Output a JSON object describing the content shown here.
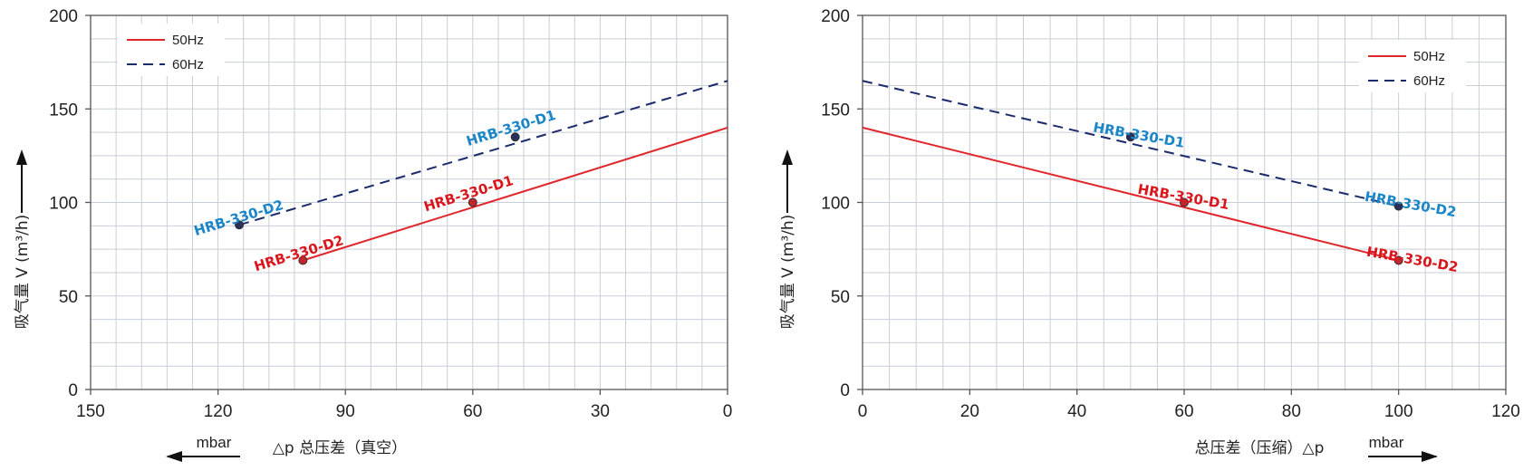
{
  "colors": {
    "s50": "#e0262b",
    "s60": "#1b2a6b",
    "label_blue": "#1a86c8",
    "label_red": "#d9161c",
    "grid": "#c9ced8"
  },
  "chart_data": [
    {
      "type": "line",
      "ylabel": "吸气量 V (m³/h)",
      "xlabel": "△p 总压差（真空）",
      "x_unit": "mbar",
      "x_direction": "left",
      "xlim": [
        150,
        0
      ],
      "ylim": [
        0,
        200
      ],
      "x_ticks": [
        "150",
        "120",
        "90",
        "60",
        "30",
        "0"
      ],
      "y_ticks": [
        "0",
        "50",
        "100",
        "150",
        "200"
      ],
      "grid": true,
      "legend": {
        "position": "top-left",
        "entries": [
          "50Hz",
          "60Hz"
        ]
      },
      "series": [
        {
          "name": "50Hz",
          "style": "solid",
          "points": [
            [
              100,
              69
            ],
            [
              0,
              140
            ]
          ]
        },
        {
          "name": "60Hz",
          "style": "dashed",
          "points": [
            [
              115,
              88
            ],
            [
              0,
              165
            ]
          ]
        }
      ],
      "markers": [
        {
          "series": "50Hz",
          "x": 100,
          "y": 69,
          "label": "HRB-330-D2"
        },
        {
          "series": "50Hz",
          "x": 60,
          "y": 100,
          "label": "HRB-330-D1"
        },
        {
          "series": "60Hz",
          "x": 115,
          "y": 88,
          "label": "HRB-330-D2"
        },
        {
          "series": "60Hz",
          "x": 50,
          "y": 135,
          "label": "HRB-330-D1"
        }
      ]
    },
    {
      "type": "line",
      "ylabel": "吸气量 V (m³/h)",
      "xlabel": "总压差（压缩）△p",
      "x_unit": "mbar",
      "x_direction": "right",
      "xlim": [
        0,
        120
      ],
      "ylim": [
        0,
        200
      ],
      "x_ticks": [
        "0",
        "20",
        "40",
        "60",
        "80",
        "100",
        "120"
      ],
      "y_ticks": [
        "0",
        "50",
        "100",
        "150",
        "200"
      ],
      "grid": true,
      "legend": {
        "position": "top-right",
        "entries": [
          "50Hz",
          "60Hz"
        ]
      },
      "series": [
        {
          "name": "50Hz",
          "style": "solid",
          "points": [
            [
              0,
              140
            ],
            [
              100,
              69
            ]
          ]
        },
        {
          "name": "60Hz",
          "style": "dashed",
          "points": [
            [
              0,
              165
            ],
            [
              100,
              98
            ]
          ]
        }
      ],
      "markers": [
        {
          "series": "50Hz",
          "x": 60,
          "y": 100,
          "label": "HRB-330-D1"
        },
        {
          "series": "50Hz",
          "x": 100,
          "y": 69,
          "label": "HRB-330-D2"
        },
        {
          "series": "60Hz",
          "x": 50,
          "y": 135,
          "label": "HRB-330-D1"
        },
        {
          "series": "60Hz",
          "x": 100,
          "y": 98,
          "label": "HRB-330-D2"
        }
      ]
    }
  ]
}
